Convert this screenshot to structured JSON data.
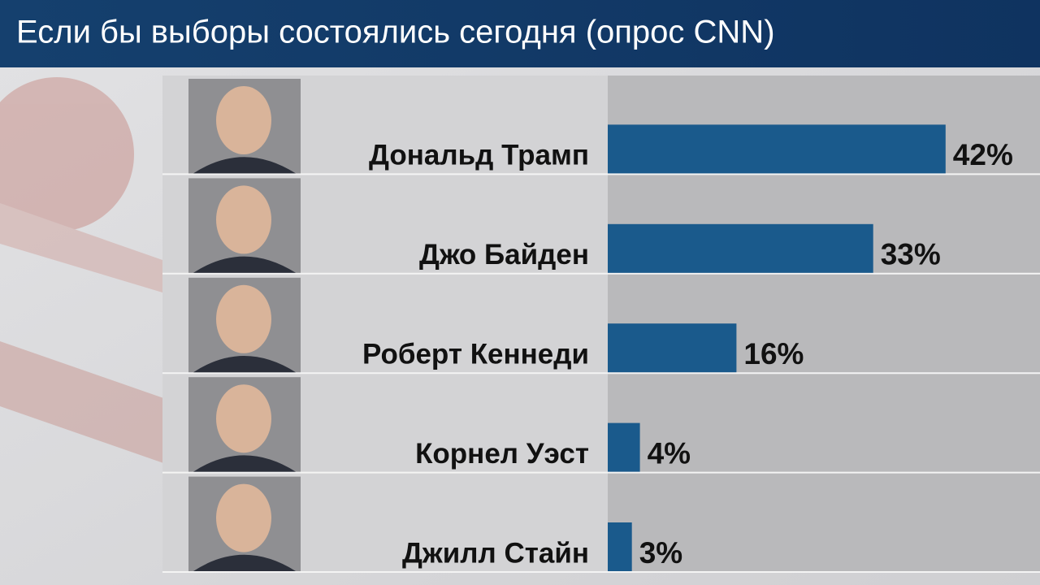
{
  "chart_data": {
    "type": "bar",
    "title": "Если бы выборы состоялись сегодня (опрос CNN)",
    "categories": [
      "Дональд Трамп",
      "Джо Байден",
      "Роберт Кеннеди",
      "Корнел Уэст",
      "Джилл Стайн"
    ],
    "values": [
      42,
      33,
      16,
      4,
      3
    ],
    "value_labels": [
      "42%",
      "33%",
      "16%",
      "4%",
      "3%"
    ],
    "color": "#1a5a8c"
  }
}
